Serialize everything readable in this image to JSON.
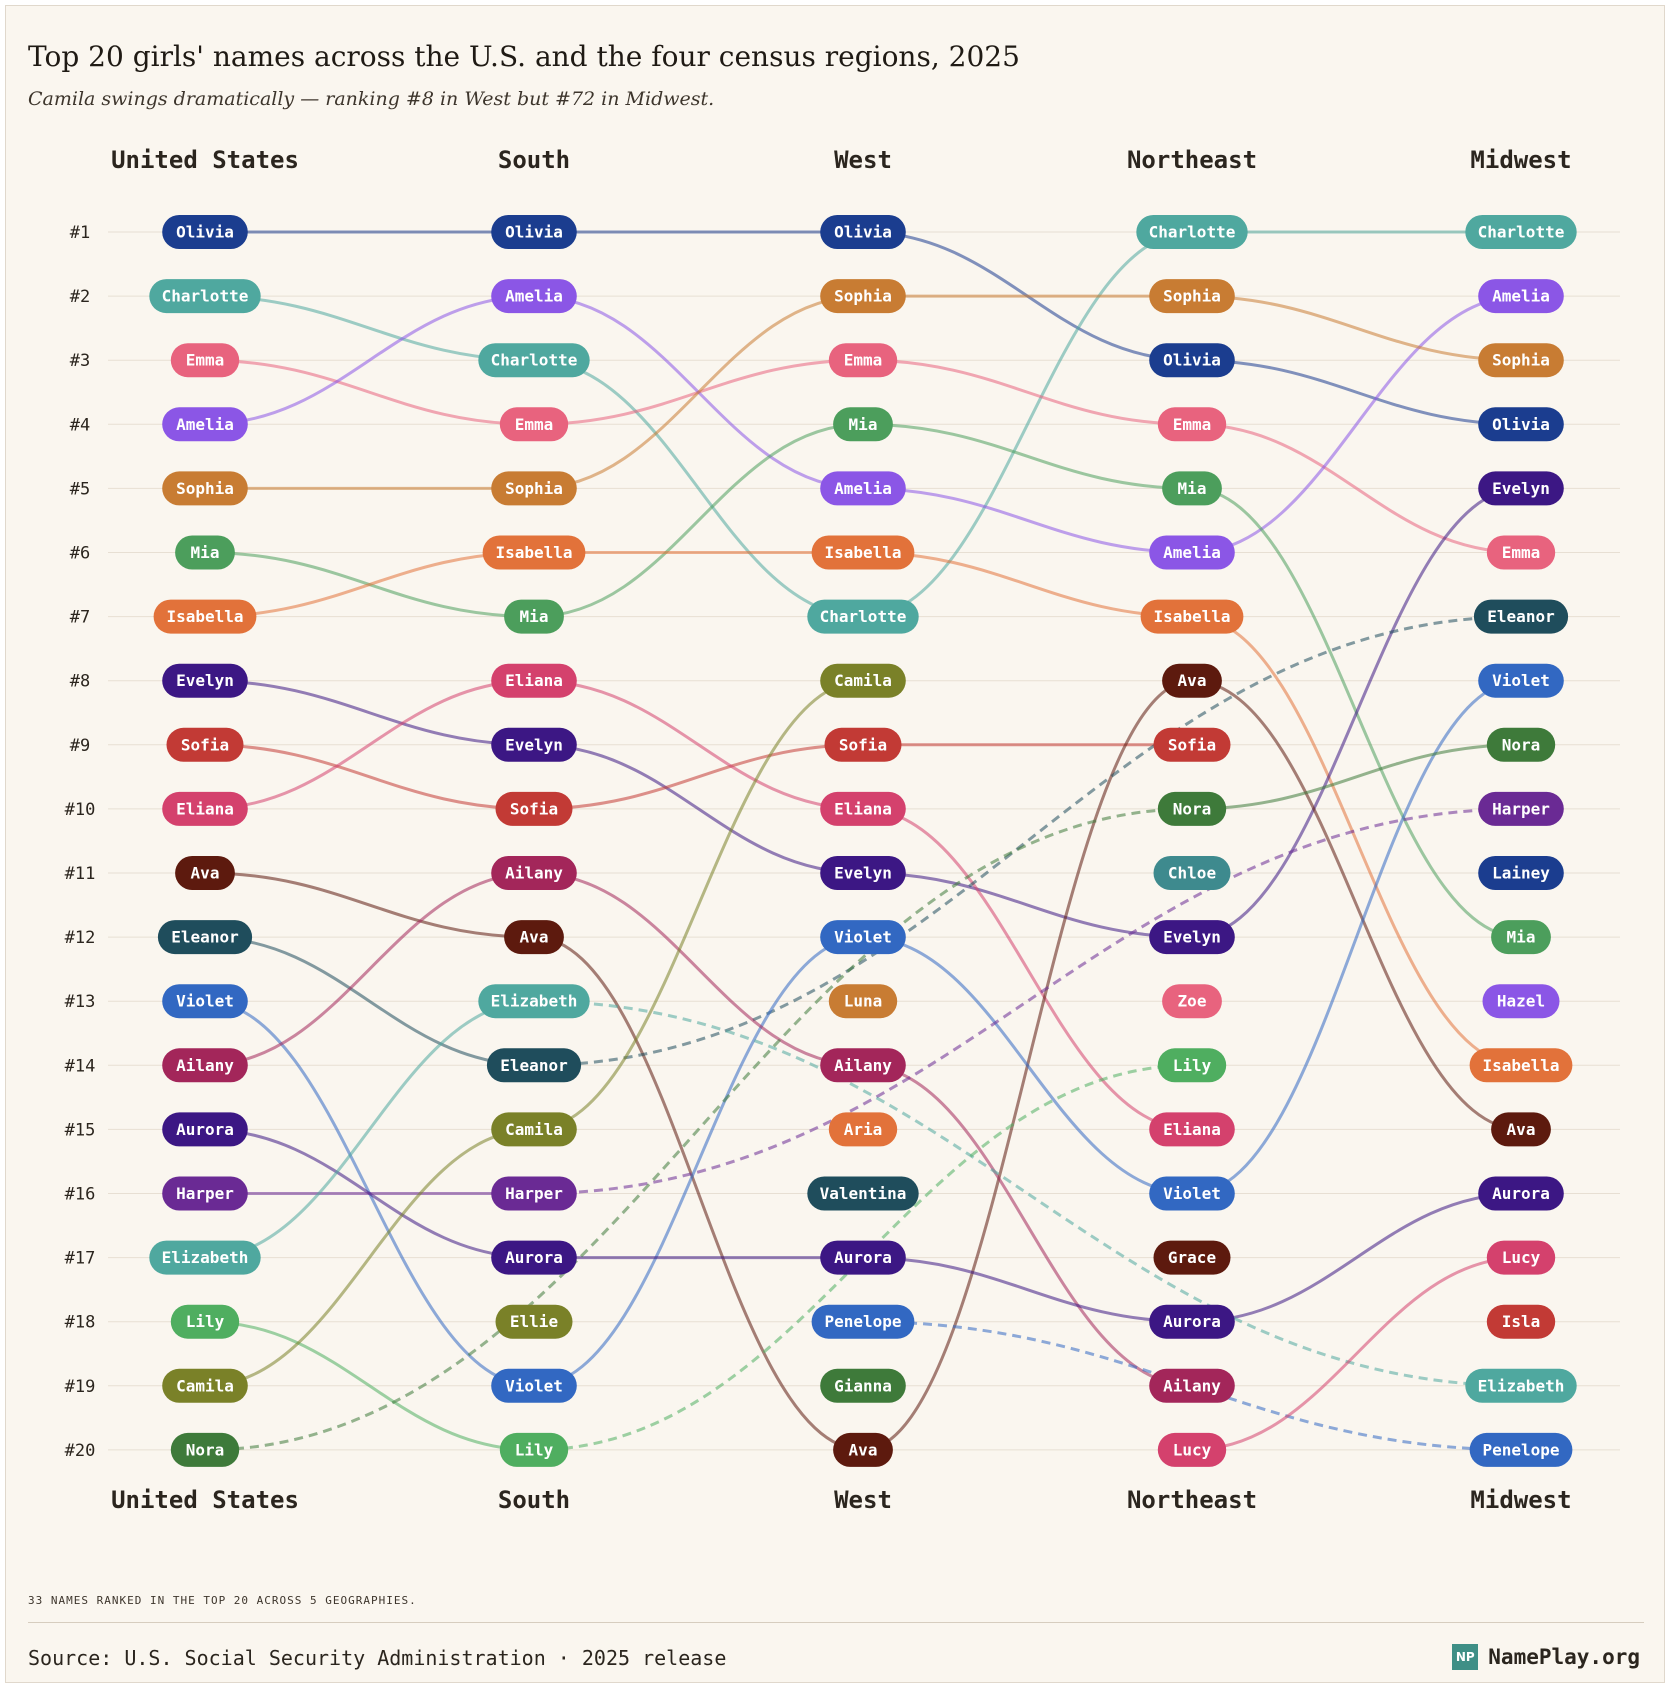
{
  "title": "Top 20 girls' names across the U.S. and the four census regions, 2025",
  "subtitle": "Camila swings dramatically — ranking #8 in West but #72 in Midwest.",
  "footnote": "33 NAMES RANKED IN THE TOP 20 ACROSS 5 GEOGRAPHIES.",
  "source": "Source: U.S. Social Security Administration · 2025 release",
  "brand": {
    "logo": "NP",
    "name": "NamePlay.org"
  },
  "chart_data": {
    "type": "bump",
    "columns": [
      "United States",
      "South",
      "West",
      "Northeast",
      "Midwest"
    ],
    "rank_labels": [
      "#1",
      "#2",
      "#3",
      "#4",
      "#5",
      "#6",
      "#7",
      "#8",
      "#9",
      "#10",
      "#11",
      "#12",
      "#13",
      "#14",
      "#15",
      "#16",
      "#17",
      "#18",
      "#19",
      "#20"
    ],
    "rankings": [
      [
        "Olivia",
        "Charlotte",
        "Emma",
        "Amelia",
        "Sophia",
        "Mia",
        "Isabella",
        "Evelyn",
        "Sofia",
        "Eliana",
        "Ava",
        "Eleanor",
        "Violet",
        "Ailany",
        "Aurora",
        "Harper",
        "Elizabeth",
        "Lily",
        "Camila",
        "Nora"
      ],
      [
        "Olivia",
        "Amelia",
        "Charlotte",
        "Emma",
        "Sophia",
        "Isabella",
        "Mia",
        "Eliana",
        "Evelyn",
        "Sofia",
        "Ailany",
        "Ava",
        "Elizabeth",
        "Eleanor",
        "Camila",
        "Harper",
        "Aurora",
        "Ellie",
        "Violet",
        "Lily"
      ],
      [
        "Olivia",
        "Sophia",
        "Emma",
        "Mia",
        "Amelia",
        "Isabella",
        "Charlotte",
        "Camila",
        "Sofia",
        "Eliana",
        "Evelyn",
        "Violet",
        "Luna",
        "Ailany",
        "Aria",
        "Valentina",
        "Aurora",
        "Penelope",
        "Gianna",
        "Ava"
      ],
      [
        "Charlotte",
        "Sophia",
        "Olivia",
        "Emma",
        "Mia",
        "Amelia",
        "Isabella",
        "Ava",
        "Sofia",
        "Nora",
        "Chloe",
        "Evelyn",
        "Zoe",
        "Lily",
        "Eliana",
        "Violet",
        "Grace",
        "Aurora",
        "Ailany",
        "Lucy"
      ],
      [
        "Charlotte",
        "Amelia",
        "Sophia",
        "Olivia",
        "Evelyn",
        "Emma",
        "Eleanor",
        "Violet",
        "Nora",
        "Harper",
        "Lainey",
        "Mia",
        "Hazel",
        "Isabella",
        "Ava",
        "Aurora",
        "Lucy",
        "Isla",
        "Elizabeth",
        "Penelope"
      ]
    ],
    "colors": {
      "Olivia": "#1b3d8f",
      "Charlotte": "#4fa89f",
      "Emma": "#e8637e",
      "Amelia": "#8b56e6",
      "Sophia": "#c87c33",
      "Mia": "#4c9e5c",
      "Isabella": "#e2723a",
      "Evelyn": "#3c1784",
      "Sofia": "#c23a35",
      "Eliana": "#d4416d",
      "Ava": "#5d1a0e",
      "Eleanor": "#1f4d5c",
      "Violet": "#3268c2",
      "Ailany": "#a3265a",
      "Aurora": "#3c1784",
      "Harper": "#6a2a94",
      "Elizabeth": "#4fa89f",
      "Lily": "#4fae60",
      "Camila": "#7a8128",
      "Nora": "#3e7a3a",
      "Ellie": "#7a8128",
      "Luna": "#c87c33",
      "Aria": "#e2723a",
      "Valentina": "#1f4d5c",
      "Penelope": "#3268c2",
      "Gianna": "#3e7a3a",
      "Chloe": "#3e8a8e",
      "Zoe": "#e8637e",
      "Grace": "#5d1a0e",
      "Lucy": "#d4416d",
      "Lainey": "#1b3d8f",
      "Hazel": "#8b56e6",
      "Isla": "#c23a35"
    },
    "xlabel": "",
    "ylabel": "",
    "grid": true
  }
}
